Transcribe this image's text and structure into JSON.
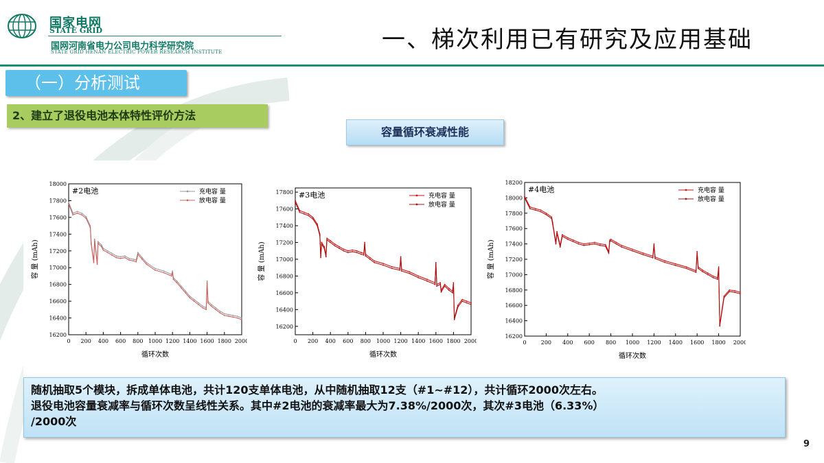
{
  "header": {
    "org_cn": "国家电网",
    "org_en": "STATE GRID",
    "institute_cn": "国网河南省电力公司电力科学研究院",
    "institute_en": "STATE GRID HENAN ELECTRIC POWER RESEARCH INSTITUTE",
    "title": "一、梯次利用已有研究及应用基础"
  },
  "section": {
    "label": "（一）分析测试"
  },
  "subsection": {
    "label": "2、建立了退役电池本体特性评价方法"
  },
  "figure_title": "容量循环衰减性能",
  "colors": {
    "brand_green": "#0f7a63",
    "section_blue": "#5cc0ea",
    "sub_green": "#a9cc60",
    "series_red": "#cc1111",
    "series_gray": "#8a8a8a"
  },
  "chart_data": [
    {
      "type": "line",
      "title": "#2电池",
      "xlabel": "循环次数",
      "ylabel": "容 量 (mAh)",
      "xlim": [
        0,
        2000
      ],
      "ylim": [
        16200,
        18000
      ],
      "xticks": [
        "0",
        "200",
        "400",
        "600",
        "800",
        "1000",
        "1200",
        "1400",
        "1600",
        "1800",
        "2000"
      ],
      "yticks": [
        "16200",
        "16400",
        "16600",
        "16800",
        "17000",
        "17200",
        "17400",
        "17600",
        "17800",
        "18000"
      ],
      "legend": [
        "充电容 量",
        "放电容 量"
      ],
      "series": [
        {
          "name": "充电容 量",
          "x": [
            0,
            50,
            100,
            150,
            200,
            250,
            260,
            290,
            300,
            330,
            340,
            380,
            400,
            450,
            500,
            550,
            600,
            650,
            700,
            750,
            780,
            790,
            800,
            850,
            900,
            1000,
            1100,
            1190,
            1200,
            1210,
            1250,
            1300,
            1350,
            1400,
            1450,
            1500,
            1550,
            1590,
            1600,
            1610,
            1650,
            1700,
            1750,
            1800,
            1850,
            1900,
            1950,
            2000
          ],
          "y": [
            17780,
            17650,
            17670,
            17650,
            17610,
            17500,
            17300,
            17080,
            17340,
            17060,
            17310,
            17270,
            17230,
            17200,
            17170,
            17140,
            17130,
            17140,
            17110,
            17100,
            17090,
            17130,
            17180,
            17120,
            17060,
            16990,
            16960,
            16920,
            16960,
            16880,
            16840,
            16780,
            16720,
            16660,
            16620,
            16580,
            16540,
            16520,
            16840,
            16600,
            16560,
            16520,
            16480,
            16450,
            16440,
            16430,
            16420,
            16400
          ]
        },
        {
          "name": "放电容 量",
          "x": [
            0,
            50,
            100,
            150,
            200,
            250,
            260,
            290,
            300,
            330,
            340,
            380,
            400,
            450,
            500,
            550,
            600,
            650,
            700,
            750,
            780,
            790,
            800,
            850,
            900,
            1000,
            1100,
            1190,
            1200,
            1210,
            1250,
            1300,
            1350,
            1400,
            1450,
            1500,
            1550,
            1590,
            1600,
            1610,
            1650,
            1700,
            1750,
            1800,
            1850,
            1900,
            1950,
            2000
          ],
          "y": [
            17760,
            17630,
            17650,
            17630,
            17590,
            17480,
            17280,
            17060,
            17320,
            17040,
            17290,
            17250,
            17210,
            17180,
            17150,
            17120,
            17110,
            17120,
            17090,
            17080,
            17070,
            17110,
            17160,
            17100,
            17040,
            16970,
            16940,
            16900,
            16940,
            16860,
            16820,
            16760,
            16700,
            16640,
            16600,
            16560,
            16520,
            16500,
            16820,
            16580,
            16540,
            16500,
            16460,
            16430,
            16420,
            16410,
            16400,
            16380
          ]
        }
      ]
    },
    {
      "type": "line",
      "title": "#3电池",
      "xlabel": "循环次数",
      "ylabel": "容 量 (mAh)",
      "xlim": [
        0,
        2000
      ],
      "ylim": [
        16100,
        17850
      ],
      "xticks": [
        "0",
        "200",
        "400",
        "600",
        "800",
        "1000",
        "1200",
        "1400",
        "1600",
        "1800",
        "2000"
      ],
      "yticks": [
        "16200",
        "16400",
        "16600",
        "16800",
        "17000",
        "17200",
        "17400",
        "17600",
        "17800"
      ],
      "legend": [
        "充电容 量",
        "放电容 量"
      ],
      "series": [
        {
          "name": "充电容 量",
          "x": [
            0,
            50,
            100,
            150,
            200,
            250,
            280,
            290,
            300,
            330,
            350,
            360,
            400,
            450,
            500,
            550,
            600,
            650,
            700,
            750,
            780,
            790,
            800,
            850,
            900,
            1000,
            1100,
            1190,
            1200,
            1210,
            1300,
            1400,
            1500,
            1590,
            1600,
            1610,
            1650,
            1660,
            1700,
            1750,
            1790,
            1800,
            1810,
            1850,
            1900,
            1950,
            2000
          ],
          "y": [
            17700,
            17580,
            17560,
            17540,
            17500,
            17420,
            17300,
            17040,
            17200,
            17150,
            17050,
            17250,
            17220,
            17180,
            17150,
            17120,
            17100,
            17110,
            17100,
            17080,
            17070,
            17200,
            17060,
            17020,
            16980,
            16950,
            16910,
            16890,
            17030,
            16880,
            16850,
            16800,
            16760,
            16720,
            16960,
            16700,
            16720,
            16630,
            16700,
            16650,
            16620,
            16720,
            16300,
            16450,
            16520,
            16500,
            16480
          ]
        },
        {
          "name": "放电容 量",
          "x": [
            0,
            50,
            100,
            150,
            200,
            250,
            280,
            290,
            300,
            330,
            350,
            360,
            400,
            450,
            500,
            550,
            600,
            650,
            700,
            750,
            780,
            790,
            800,
            850,
            900,
            1000,
            1100,
            1190,
            1200,
            1210,
            1300,
            1400,
            1500,
            1590,
            1600,
            1610,
            1650,
            1660,
            1700,
            1750,
            1790,
            1800,
            1810,
            1850,
            1900,
            1950,
            2000
          ],
          "y": [
            17680,
            17560,
            17540,
            17520,
            17480,
            17400,
            17280,
            17020,
            17180,
            17130,
            17030,
            17230,
            17200,
            17160,
            17130,
            17100,
            17080,
            17090,
            17080,
            17060,
            17050,
            17180,
            17040,
            17000,
            16960,
            16930,
            16890,
            16870,
            17010,
            16860,
            16830,
            16780,
            16740,
            16700,
            16940,
            16680,
            16700,
            16610,
            16680,
            16630,
            16600,
            16700,
            16280,
            16430,
            16500,
            16480,
            16460
          ]
        }
      ]
    },
    {
      "type": "line",
      "title": "#4电池",
      "xlabel": "循环次数",
      "ylabel": "容 量 (mAh)",
      "xlim": [
        0,
        2000
      ],
      "ylim": [
        16200,
        18200
      ],
      "xticks": [
        "0",
        "200",
        "400",
        "600",
        "800",
        "1000",
        "1200",
        "1400",
        "1600",
        "1800",
        "2000"
      ],
      "yticks": [
        "16200",
        "16400",
        "16600",
        "16800",
        "17000",
        "17200",
        "17400",
        "17600",
        "17800",
        "18000",
        "18200"
      ],
      "legend": [
        "充电容 量",
        "放电容 量"
      ],
      "series": [
        {
          "name": "充电容 量",
          "x": [
            0,
            50,
            100,
            150,
            200,
            250,
            260,
            290,
            300,
            330,
            350,
            400,
            450,
            500,
            550,
            600,
            650,
            700,
            750,
            780,
            790,
            800,
            850,
            900,
            1000,
            1100,
            1190,
            1200,
            1210,
            1300,
            1400,
            1500,
            1590,
            1600,
            1610,
            1650,
            1700,
            1750,
            1790,
            1800,
            1810,
            1850,
            1900,
            1950,
            2000
          ],
          "y": [
            18020,
            17880,
            17860,
            17840,
            17800,
            17750,
            17680,
            17420,
            17560,
            17380,
            17520,
            17480,
            17450,
            17420,
            17400,
            17410,
            17420,
            17400,
            17390,
            17300,
            17450,
            17460,
            17420,
            17380,
            17330,
            17280,
            17240,
            17400,
            17230,
            17180,
            17140,
            17100,
            17050,
            17300,
            17100,
            17060,
            17020,
            16980,
            16960,
            17100,
            16350,
            16720,
            16800,
            16790,
            16770
          ]
        },
        {
          "name": "放电容 量",
          "x": [
            0,
            50,
            100,
            150,
            200,
            250,
            260,
            290,
            300,
            330,
            350,
            400,
            450,
            500,
            550,
            600,
            650,
            700,
            750,
            780,
            790,
            800,
            850,
            900,
            1000,
            1100,
            1190,
            1200,
            1210,
            1300,
            1400,
            1500,
            1590,
            1600,
            1610,
            1650,
            1700,
            1750,
            1790,
            1800,
            1810,
            1850,
            1900,
            1950,
            2000
          ],
          "y": [
            18000,
            17860,
            17840,
            17820,
            17780,
            17730,
            17660,
            17400,
            17540,
            17360,
            17500,
            17460,
            17430,
            17400,
            17380,
            17390,
            17400,
            17380,
            17370,
            17280,
            17430,
            17440,
            17400,
            17360,
            17310,
            17260,
            17220,
            17380,
            17210,
            17160,
            17120,
            17080,
            17030,
            17280,
            17080,
            17040,
            17000,
            16960,
            16940,
            17080,
            16330,
            16700,
            16780,
            16770,
            16750
          ]
        }
      ]
    }
  ],
  "description": {
    "line1": "随机抽取5个模块，拆成单体电池，共计120支单体电池，从中随机抽取12支（#1~#12），共计循环2000次左右。",
    "line2": "退役电池容量衰减率与循环次数呈线性关系。其中#2电池的衰减率最大为7.38%/2000次，其次#3电池（6.33%）",
    "line3": "/2000次"
  },
  "page_number": "9"
}
